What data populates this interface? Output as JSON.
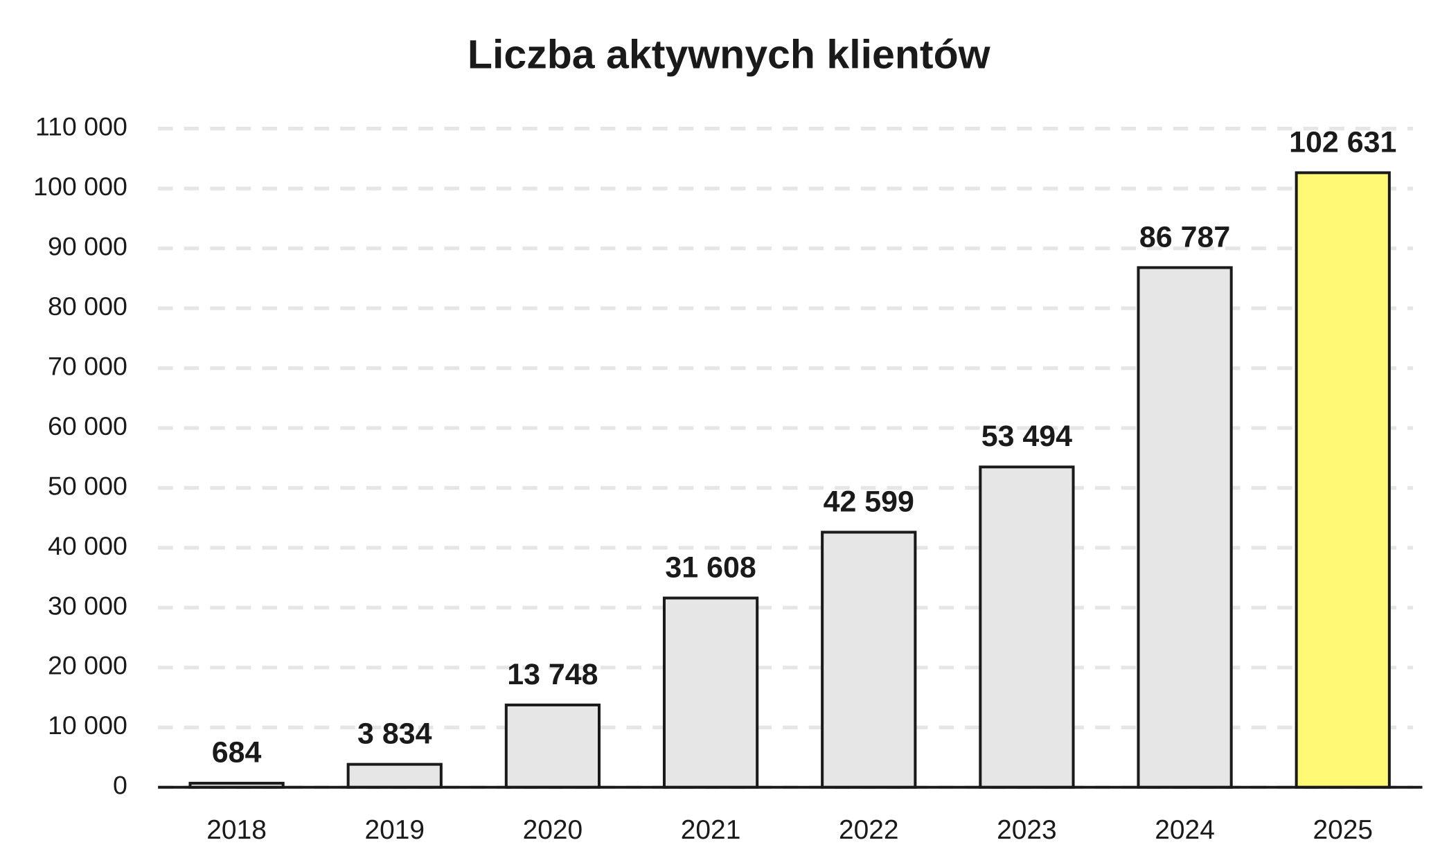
{
  "chart_data": {
    "type": "bar",
    "title": "Liczba aktywnych klientów",
    "categories": [
      "2018",
      "2019",
      "2020",
      "2021",
      "2022",
      "2023",
      "2024",
      "2025"
    ],
    "values": [
      684,
      3834,
      13748,
      31608,
      42599,
      53494,
      86787,
      102631
    ],
    "value_labels": [
      "684",
      "3 834",
      "13 748",
      "31 608",
      "42 599",
      "53 494",
      "86 787",
      "102 631"
    ],
    "colors": [
      "#e6e6e6",
      "#e6e6e6",
      "#e6e6e6",
      "#e6e6e6",
      "#e6e6e6",
      "#e6e6e6",
      "#e6e6e6",
      "#fff976"
    ],
    "ylim": [
      0,
      110000
    ],
    "yticks": [
      0,
      {
        "value": 10000,
        "label": "10 000"
      },
      {
        "value": 20000,
        "label": "20 000"
      },
      {
        "value": 30000,
        "label": "30 000"
      },
      {
        "value": 40000,
        "label": "40 000"
      },
      {
        "value": 50000,
        "label": "50 000"
      },
      {
        "value": 60000,
        "label": "60 000"
      },
      {
        "value": 70000,
        "label": "70 000"
      },
      {
        "value": 80000,
        "label": "80 000"
      },
      {
        "value": 90000,
        "label": "90 000"
      },
      {
        "value": 100000,
        "label": "100 000"
      },
      {
        "value": 110000,
        "label": "110 000"
      }
    ],
    "grid": true
  }
}
